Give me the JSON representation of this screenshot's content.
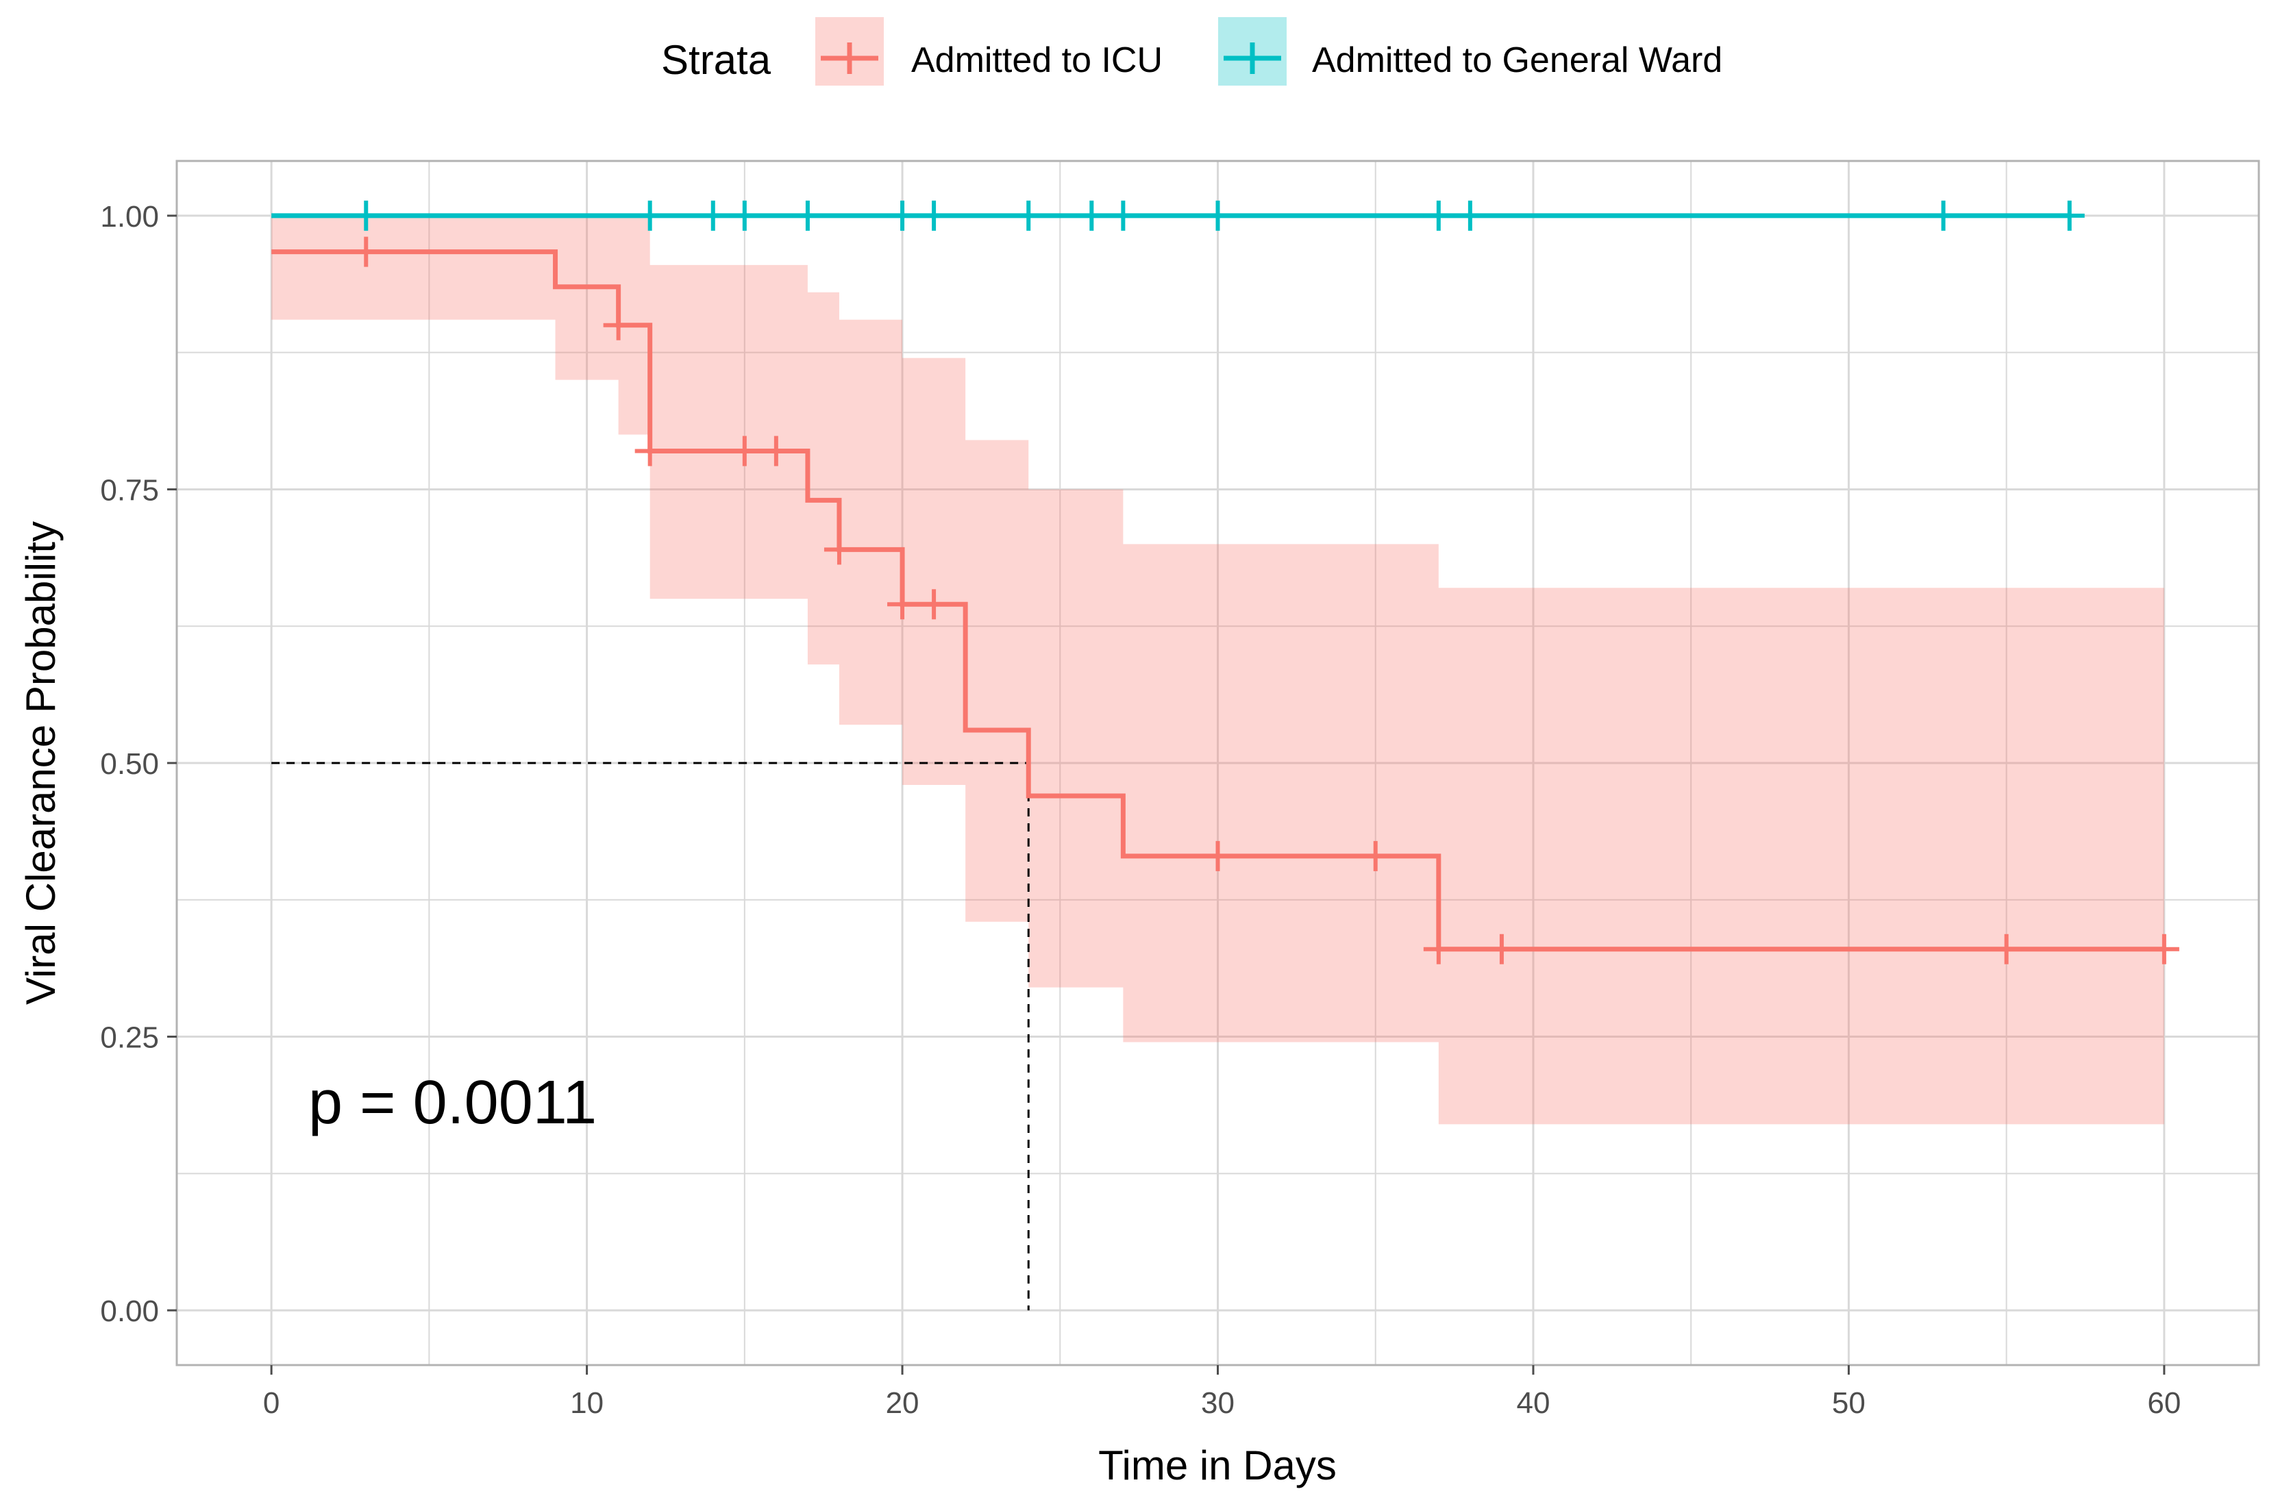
{
  "colors": {
    "icu": "#F8766D",
    "icu_band": "#F8766D",
    "ward": "#00BFC4",
    "grid": "#d9d9d9",
    "panel_border": "#b3b3b3"
  },
  "legend": {
    "title": "Strata",
    "entries": [
      {
        "label": "Admitted to ICU",
        "color": "#F8766D"
      },
      {
        "label": "Admitted to General Ward",
        "color": "#00BFC4"
      }
    ]
  },
  "annotation": {
    "text": "p = 0.0011"
  },
  "chart_data": {
    "type": "line",
    "subtype": "kaplan-meier-step",
    "title": "",
    "xlabel": "Time in Days",
    "ylabel": "Viral Clearance Probability",
    "xlim": [
      -3,
      63
    ],
    "ylim": [
      -0.05,
      1.05
    ],
    "x_ticks": [
      0,
      10,
      20,
      30,
      40,
      50,
      60
    ],
    "x_tick_labels": [
      "0",
      "10",
      "20",
      "30",
      "40",
      "50",
      "60"
    ],
    "y_ticks": [
      0,
      0.25,
      0.5,
      0.75,
      1.0
    ],
    "y_tick_labels": [
      "0.00",
      "0.25",
      "0.50",
      "0.75",
      "1.00"
    ],
    "grid": true,
    "legend_position": "top",
    "median_line": {
      "y": 0.5,
      "x": 24
    },
    "series": [
      {
        "name": "Admitted to ICU",
        "step_x": [
          0,
          9,
          11,
          12,
          17,
          18,
          20,
          22,
          24,
          27,
          37,
          60
        ],
        "step_y": [
          0.967,
          0.935,
          0.9,
          0.785,
          0.74,
          0.695,
          0.645,
          0.53,
          0.47,
          0.415,
          0.33,
          0.33
        ],
        "ci_lower": [
          0.905,
          0.85,
          0.8,
          0.65,
          0.59,
          0.535,
          0.48,
          0.355,
          0.295,
          0.245,
          0.17,
          0.17
        ],
        "ci_upper": [
          1.0,
          1.0,
          1.0,
          0.955,
          0.93,
          0.905,
          0.87,
          0.795,
          0.75,
          0.7,
          0.66,
          0.66
        ],
        "censored": [
          {
            "x": 3,
            "y": 0.967
          },
          {
            "x": 11,
            "y": 0.9
          },
          {
            "x": 12,
            "y": 0.785
          },
          {
            "x": 15,
            "y": 0.785
          },
          {
            "x": 16,
            "y": 0.785
          },
          {
            "x": 18,
            "y": 0.695
          },
          {
            "x": 20,
            "y": 0.645
          },
          {
            "x": 21,
            "y": 0.645
          },
          {
            "x": 30,
            "y": 0.415
          },
          {
            "x": 35,
            "y": 0.415
          },
          {
            "x": 37,
            "y": 0.33
          },
          {
            "x": 39,
            "y": 0.33
          },
          {
            "x": 55,
            "y": 0.33
          },
          {
            "x": 60,
            "y": 0.33
          }
        ]
      },
      {
        "name": "Admitted to General Ward",
        "step_x": [
          0,
          57
        ],
        "step_y": [
          1.0,
          1.0
        ],
        "censored": [
          {
            "x": 3,
            "y": 1.0
          },
          {
            "x": 12,
            "y": 1.0
          },
          {
            "x": 14,
            "y": 1.0
          },
          {
            "x": 15,
            "y": 1.0
          },
          {
            "x": 17,
            "y": 1.0
          },
          {
            "x": 20,
            "y": 1.0
          },
          {
            "x": 21,
            "y": 1.0
          },
          {
            "x": 24,
            "y": 1.0
          },
          {
            "x": 26,
            "y": 1.0
          },
          {
            "x": 27,
            "y": 1.0
          },
          {
            "x": 30,
            "y": 1.0
          },
          {
            "x": 37,
            "y": 1.0
          },
          {
            "x": 38,
            "y": 1.0
          },
          {
            "x": 53,
            "y": 1.0
          },
          {
            "x": 57,
            "y": 1.0
          }
        ]
      }
    ]
  }
}
